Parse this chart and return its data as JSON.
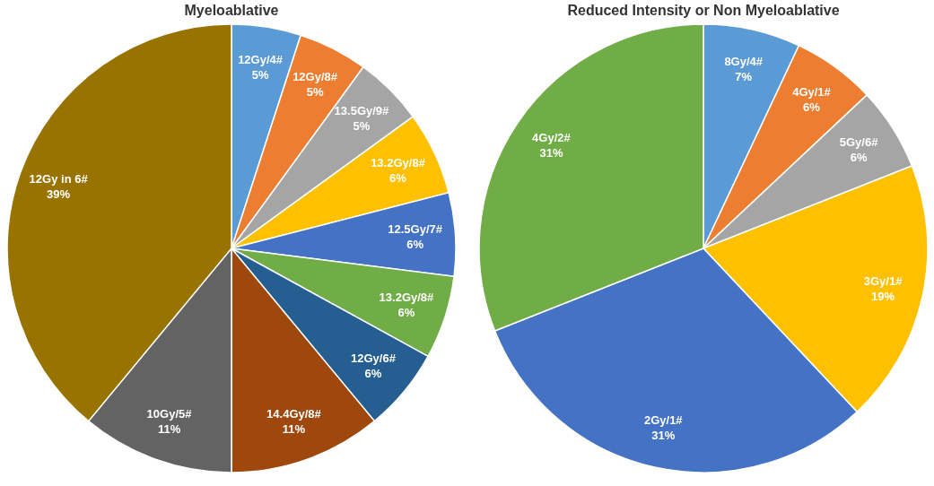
{
  "chart_data": [
    {
      "type": "pie",
      "title": "Myeloablative",
      "categories": [
        "12Gy/4#",
        "12Gy/8#",
        "13.5Gy/9#",
        "13.2Gy/8#",
        "12.5Gy/7#",
        "13.2Gy/8#",
        "12Gy/6#",
        "14.4Gy/8#",
        "10Gy/5#",
        "12Gy in 6#"
      ],
      "values": [
        5,
        5,
        5,
        6,
        6,
        6,
        6,
        11,
        11,
        39
      ],
      "value_labels": [
        "5%",
        "5%",
        "5%",
        "6%",
        "6%",
        "6%",
        "6%",
        "11%",
        "11%",
        "39%"
      ],
      "colors": [
        "#5b9bd5",
        "#ed7d31",
        "#a5a5a5",
        "#ffc000",
        "#4472c4",
        "#70ad47",
        "#255e91",
        "#9e480e",
        "#636363",
        "#997300"
      ]
    },
    {
      "type": "pie",
      "title": "Reduced Intensity or Non Myeloablative",
      "categories": [
        "8Gy/4#",
        "4Gy/1#",
        "5Gy/6#",
        "3Gy/1#",
        "2Gy/1#",
        "4Gy/2#"
      ],
      "values": [
        7,
        6,
        6,
        19,
        31,
        31
      ],
      "value_labels": [
        "7%",
        "6%",
        "6%",
        "19%",
        "31%",
        "31%"
      ],
      "colors": [
        "#5b9bd5",
        "#ed7d31",
        "#a5a5a5",
        "#ffc000",
        "#4472c4",
        "#70ad47"
      ]
    }
  ]
}
